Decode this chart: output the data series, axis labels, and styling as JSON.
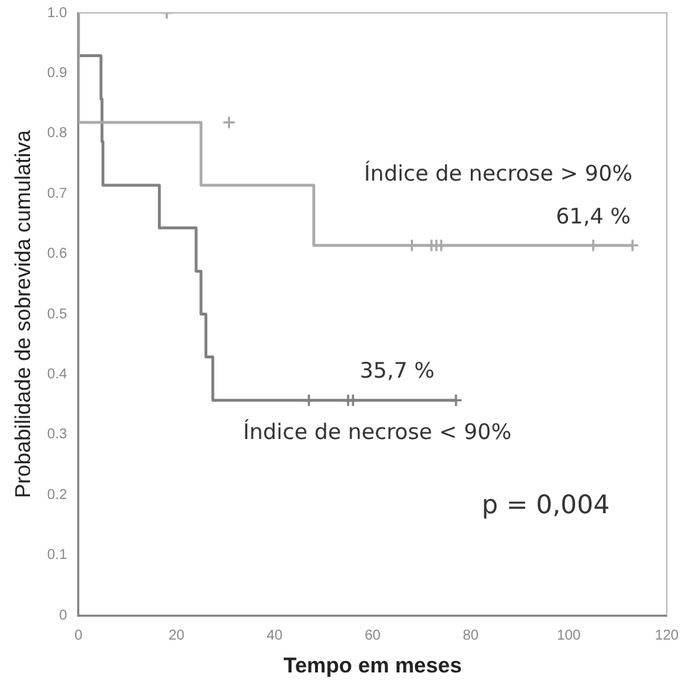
{
  "chart_data": {
    "type": "step",
    "xlabel": "Tempo em meses",
    "ylabel": "Probabilidade de sobrevida cumulativa",
    "xlim": [
      0,
      120
    ],
    "xticks": [
      0,
      20,
      40,
      60,
      80,
      100,
      120
    ],
    "ylim": [
      0,
      1
    ],
    "yticks": [
      0,
      0.1,
      0.2,
      0.3,
      0.4,
      0.5,
      0.6,
      0.7,
      0.8,
      0.9,
      {
        "value": 1,
        "label": "1.0"
      }
    ],
    "grid": false,
    "legend": false,
    "series": [
      {
        "name": "Índice de necrose > 90%",
        "color": "#aaaaaa",
        "x": [
          0,
          25,
          48,
          65,
          113
        ],
        "values": [
          1,
          0.818,
          0.714,
          0.614,
          0.614
        ]
      },
      {
        "name": "Índice de necrose < 90%",
        "color": "#808080",
        "x": [
          0,
          4.6,
          4.8,
          5,
          16.5,
          24,
          25,
          26,
          27.4,
          42,
          77
        ],
        "values": [
          1,
          0.929,
          0.857,
          0.786,
          0.714,
          0.643,
          0.571,
          0.5,
          0.429,
          0.357,
          0.357
        ]
      },
      {
        "type": "scatter",
        "marker": "cross",
        "color": "#aaaaaa",
        "x": [
          18,
          30.7,
          68,
          72,
          73,
          74,
          105,
          113
        ],
        "values": [
          1,
          0.818,
          0.614,
          0.614,
          0.614,
          0.614,
          0.614,
          0.614
        ]
      },
      {
        "type": "scatter",
        "marker": "cross",
        "color": "#808080",
        "x": [
          47,
          55,
          56,
          77
        ],
        "values": [
          0.357,
          0.357,
          0.357,
          0.357
        ]
      }
    ],
    "annotations": [
      {
        "text": "61,4 %",
        "x": 105,
        "y": 0.614
      },
      {
        "text": "35,7 %",
        "x": 65,
        "y": 0.357
      },
      "p = 0,004"
    ]
  }
}
